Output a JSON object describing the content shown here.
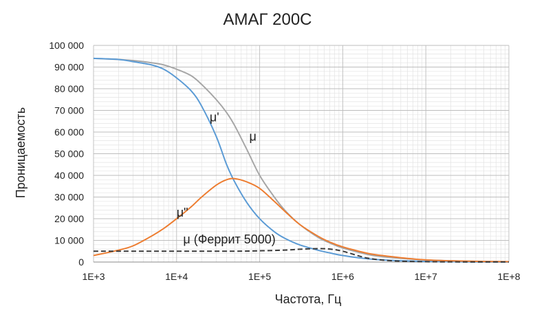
{
  "chart_data": {
    "type": "line",
    "title": "АМАГ  200С",
    "xlabel": "Частота, Гц",
    "ylabel": "Проницаемость",
    "x_scale": "log",
    "xlim": [
      1000,
      100000000
    ],
    "ylim": [
      0,
      100000
    ],
    "x_ticks": [
      {
        "value": 1000,
        "label": "1E+3"
      },
      {
        "value": 10000,
        "label": "1E+4"
      },
      {
        "value": 100000,
        "label": "1E+5"
      },
      {
        "value": 1000000,
        "label": "1E+6"
      },
      {
        "value": 10000000,
        "label": "1E+7"
      },
      {
        "value": 100000000,
        "label": "1E+8"
      }
    ],
    "y_ticks": [
      {
        "value": 0,
        "label": "0"
      },
      {
        "value": 10000,
        "label": "10 000"
      },
      {
        "value": 20000,
        "label": "20 000"
      },
      {
        "value": 30000,
        "label": "30 000"
      },
      {
        "value": 40000,
        "label": "40 000"
      },
      {
        "value": 50000,
        "label": "50 000"
      },
      {
        "value": 60000,
        "label": "60 000"
      },
      {
        "value": 70000,
        "label": "70 000"
      },
      {
        "value": 80000,
        "label": "80 000"
      },
      {
        "value": 90000,
        "label": "90 000"
      },
      {
        "value": 100000,
        "label": "100 000"
      }
    ],
    "grid": true,
    "series": [
      {
        "name": "μ",
        "color": "#a6a6a6",
        "dash": false,
        "x": [
          1000,
          2000,
          3000,
          5000,
          7000,
          10000,
          15000,
          20000,
          30000,
          40000,
          50000,
          70000,
          100000,
          150000,
          200000,
          300000,
          500000,
          700000,
          1000000,
          2000000,
          3000000,
          5000000,
          10000000,
          20000000,
          50000000,
          100000000
        ],
        "y": [
          94000,
          93500,
          93000,
          92000,
          91000,
          89000,
          86000,
          82000,
          75000,
          69000,
          63000,
          52000,
          40000,
          30000,
          24000,
          17500,
          11500,
          8800,
          6500,
          3500,
          2500,
          1700,
          1000,
          600,
          300,
          200
        ]
      },
      {
        "name": "μ'",
        "color": "#5b9bd5",
        "dash": false,
        "x": [
          1000,
          2000,
          3000,
          5000,
          7000,
          10000,
          15000,
          20000,
          30000,
          40000,
          50000,
          70000,
          100000,
          150000,
          200000,
          300000,
          500000,
          700000,
          1000000,
          2000000,
          3000000,
          5000000,
          10000000,
          20000000,
          50000000,
          100000000
        ],
        "y": [
          94000,
          93500,
          92500,
          91000,
          89000,
          85000,
          79000,
          72000,
          58000,
          45000,
          37000,
          27500,
          20000,
          14000,
          11000,
          8000,
          5500,
          4200,
          3000,
          1500,
          1000,
          600,
          300,
          150,
          50,
          20
        ]
      },
      {
        "name": "μ\"",
        "color": "#ed7d31",
        "dash": false,
        "x": [
          1000,
          2000,
          3000,
          5000,
          7000,
          10000,
          15000,
          20000,
          30000,
          40000,
          50000,
          70000,
          100000,
          150000,
          200000,
          300000,
          500000,
          700000,
          1000000,
          2000000,
          3000000,
          5000000,
          10000000,
          20000000,
          50000000,
          100000000
        ],
        "y": [
          3000,
          5500,
          7500,
          12000,
          15500,
          20000,
          25500,
          30000,
          35500,
          38000,
          38500,
          37000,
          34000,
          28000,
          23500,
          17500,
          12000,
          9200,
          7000,
          4000,
          3000,
          2000,
          1000,
          550,
          250,
          150
        ]
      },
      {
        "name": "μ (Феррит 5000)",
        "color": "#3a3a3a",
        "dash": true,
        "x": [
          1000,
          10000,
          50000,
          100000,
          200000,
          300000,
          500000,
          700000,
          1000000,
          1500000,
          2000000,
          3000000,
          5000000,
          10000000,
          30000000,
          100000000
        ],
        "y": [
          5000,
          5000,
          5000,
          5200,
          5500,
          5900,
          6200,
          6000,
          5000,
          3000,
          1800,
          900,
          400,
          150,
          50,
          20
        ]
      }
    ],
    "labels": [
      {
        "text": "μ'",
        "x": 25000,
        "y": 65000,
        "series": 1
      },
      {
        "text": "μ",
        "x": 75000,
        "y": 56000,
        "series": 0
      },
      {
        "text": "μ\"",
        "x": 10000,
        "y": 21000,
        "series": 2
      },
      {
        "text": "μ (Феррит 5000)",
        "x": 12000,
        "y": 8500,
        "series": 3
      }
    ]
  }
}
